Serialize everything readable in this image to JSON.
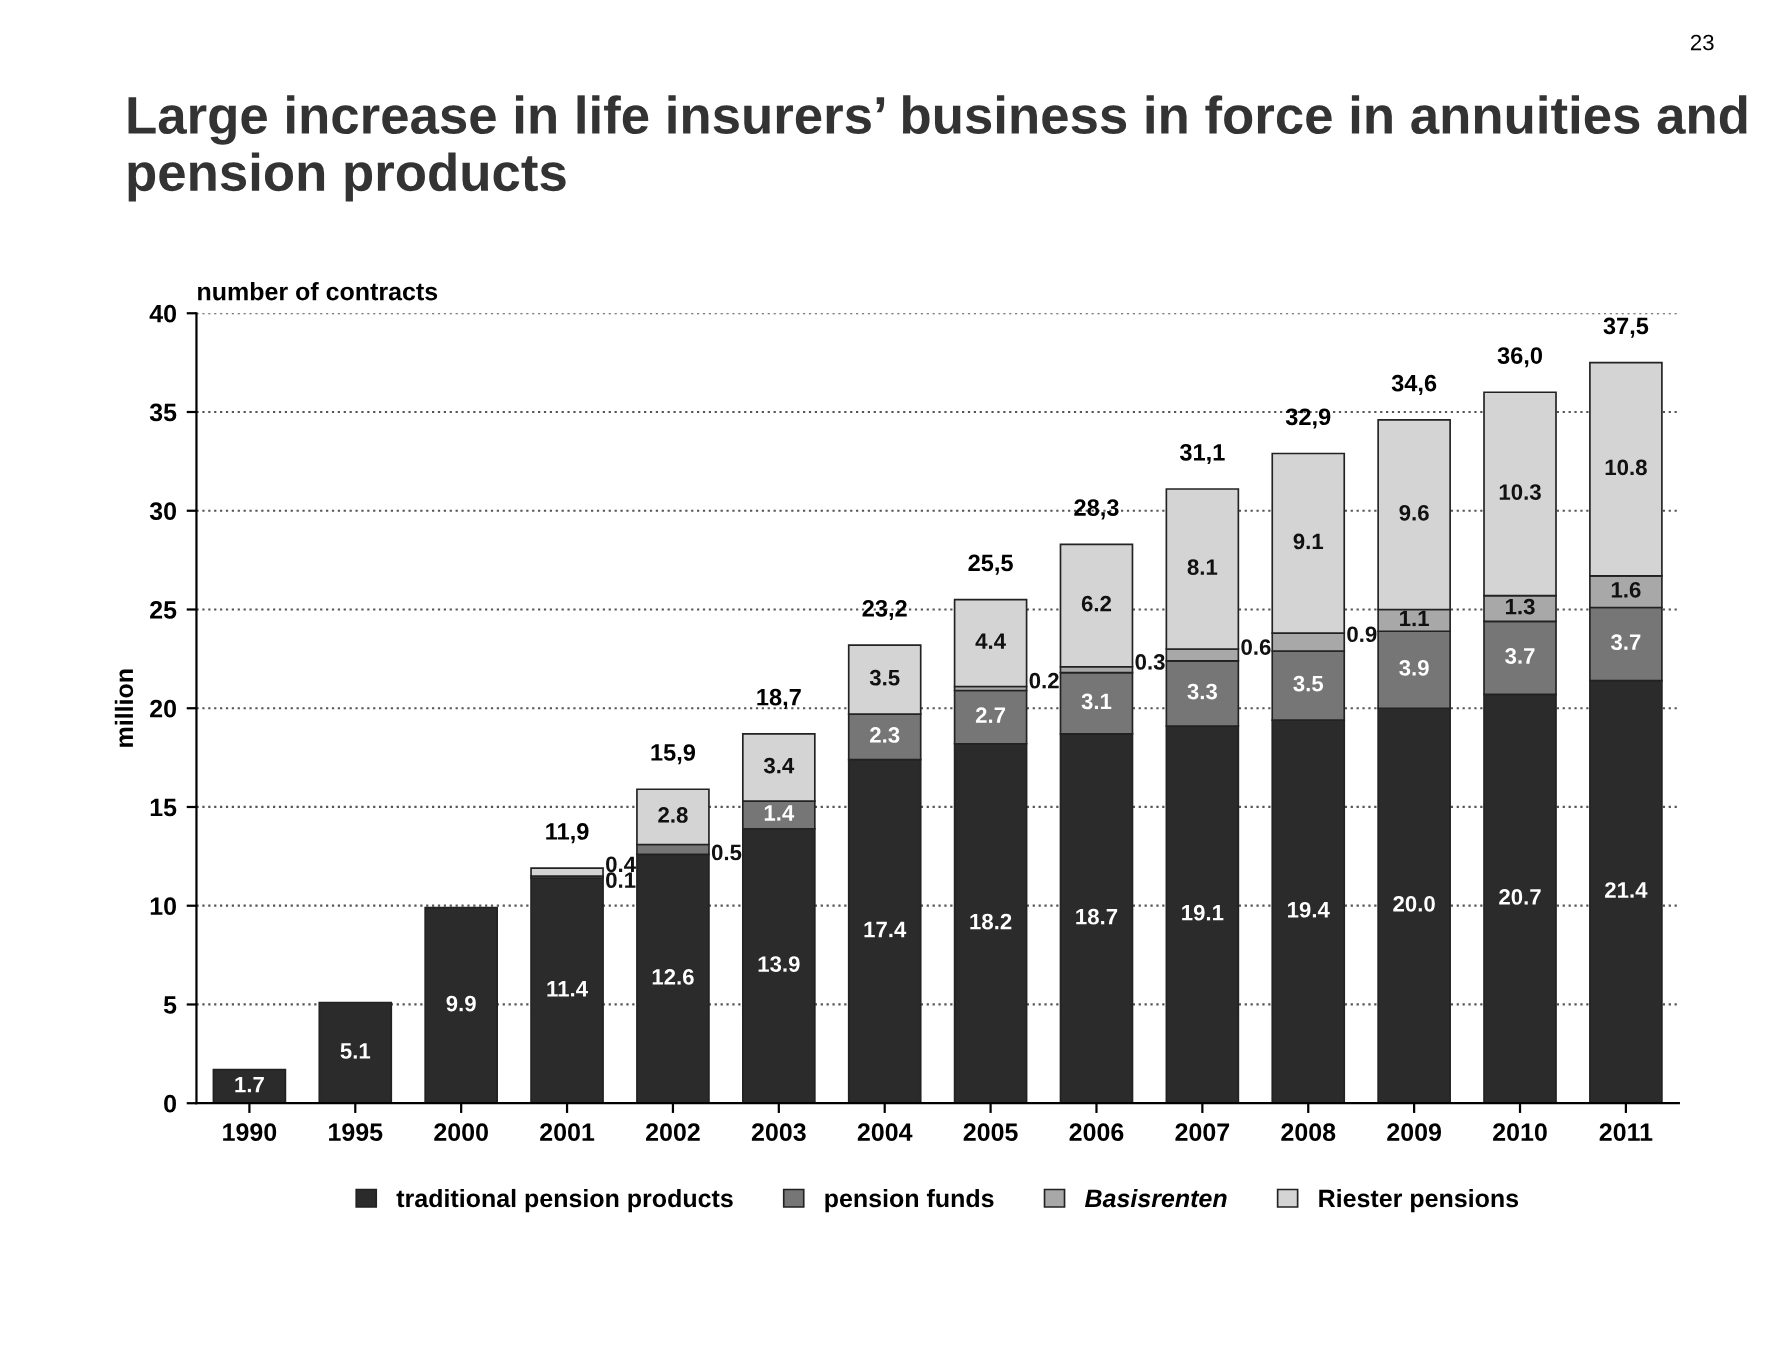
{
  "chart_data": {
    "type": "bar",
    "stacked": true,
    "title": "Large increase in life insurers’ business in force in annuities and pension products",
    "ylabel": "million",
    "annotations": [
      "number of contracts",
      "23"
    ],
    "categories": [
      "1990",
      "1995",
      "2000",
      "2001",
      "2002",
      "2003",
      "2004",
      "2005",
      "2006",
      "2007",
      "2008",
      "2009",
      "2010",
      "2011"
    ],
    "series": [
      {
        "name": "traditional pension products",
        "color": "#2b2b2b",
        "values": [
          1.7,
          5.1,
          9.9,
          11.4,
          12.6,
          13.9,
          17.4,
          18.2,
          18.7,
          19.1,
          19.4,
          20.0,
          20.7,
          21.4
        ],
        "value_labels": [
          "1.7",
          "5.1",
          "9.9",
          "11.4",
          "12.6",
          "13.9",
          "17.4",
          "18.2",
          "18.7",
          "19.1",
          "19.4",
          "20.0",
          "20.7",
          "21.4"
        ]
      },
      {
        "name": "pension funds",
        "color": "#767676",
        "values": [
          null,
          null,
          null,
          0.1,
          0.5,
          1.4,
          2.3,
          2.7,
          3.1,
          3.3,
          3.5,
          3.9,
          3.7,
          3.7
        ],
        "value_labels": [
          null,
          null,
          null,
          "0.1",
          "0.5",
          "1.4",
          "2.3",
          "2.7",
          "3.1",
          "3.3",
          "3.5",
          "3.9",
          "3.7",
          "3.7"
        ]
      },
      {
        "name": "Basisrenten",
        "color": "#a8a8a8",
        "values": [
          null,
          null,
          null,
          null,
          null,
          null,
          null,
          0.2,
          0.3,
          0.6,
          0.9,
          1.1,
          1.3,
          1.6
        ],
        "value_labels": [
          null,
          null,
          null,
          null,
          null,
          null,
          null,
          "0.2",
          "0.3",
          "0.6",
          "0.9",
          "1.1",
          "1.3",
          "1.6"
        ]
      },
      {
        "name": "Riester pensions",
        "color": "#d4d4d4",
        "values": [
          null,
          null,
          null,
          0.4,
          2.8,
          3.4,
          3.5,
          4.4,
          6.2,
          8.1,
          9.1,
          9.6,
          10.3,
          10.8
        ],
        "value_labels": [
          null,
          null,
          null,
          "0.4",
          "2.8",
          "3.4",
          "3.5",
          "4.4",
          "6.2",
          "8.1",
          "9.1",
          "9.6",
          "10.3",
          "10.8"
        ]
      }
    ],
    "totals": [
      null,
      null,
      null,
      "11,9",
      "15,9",
      "18,7",
      "23,2",
      "25,5",
      "28,3",
      "31,1",
      "32,9",
      "34,6",
      "36,0",
      "37,5"
    ],
    "ylim": [
      0,
      40
    ],
    "yticks": [
      0,
      5,
      10,
      15,
      20,
      25,
      30,
      35,
      40
    ],
    "grid": "y",
    "legend": "bottom"
  }
}
